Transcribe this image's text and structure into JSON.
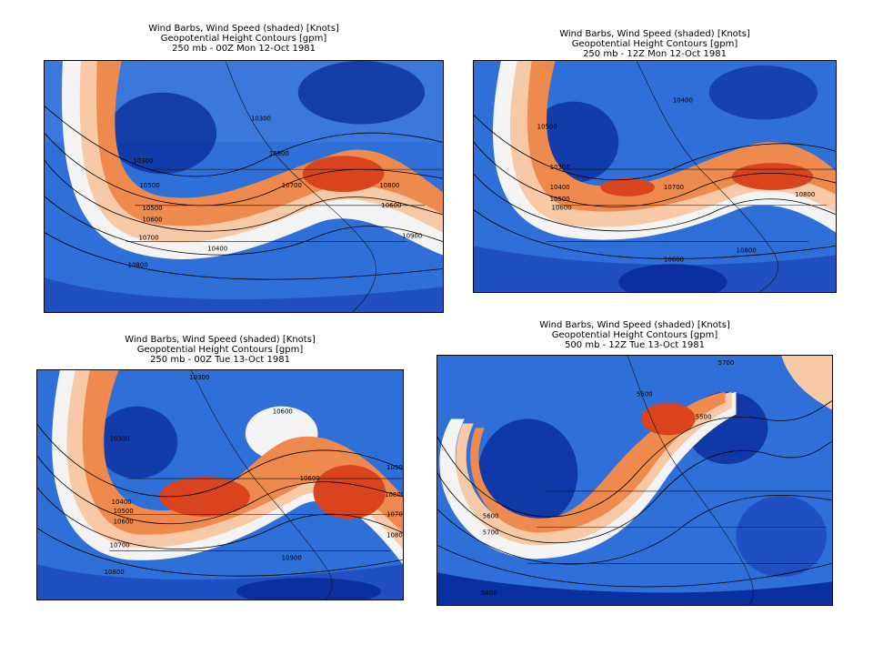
{
  "panels": [
    {
      "title_line1": "Wind Barbs, Wind Speed (shaded) [Knots]",
      "title_line2": "Geopotential Height Contours [gpm]",
      "title_line3": "250 mb - 00Z Mon 12-Oct 1981",
      "contour_labels": [
        "10500",
        "10300",
        "10500",
        "10600",
        "10700",
        "10800",
        "10700",
        "10800",
        "10600",
        "10800",
        "10900",
        "10300",
        "10400"
      ]
    },
    {
      "title_line1": "Wind Barbs, Wind Speed (shaded) [Knots]",
      "title_line2": "Geopotential Height Contours [gpm]",
      "title_line3": "250 mb - 12Z Mon 12-Oct 1981",
      "contour_labels": [
        "10500",
        "10300",
        "10400",
        "10500",
        "10600",
        "10700",
        "10800",
        "10600",
        "10800",
        "10400"
      ]
    },
    {
      "title_line1": "Wind Barbs, Wind Speed (shaded) [Knots]",
      "title_line2": "Geopotential Height Contours [gpm]",
      "title_line3": "250 mb - 00Z Tue 13-Oct 1981",
      "contour_labels": [
        "10300",
        "10600",
        "10300",
        "10400",
        "10500",
        "10600",
        "10700",
        "10800",
        "10600",
        "10900",
        "10800",
        "10700",
        "10800",
        "10300"
      ]
    },
    {
      "title_line1": "Wind Barbs, Wind Speed (shaded) [Knots]",
      "title_line2": "Geopotential Height Contours [gpm]",
      "title_line3": "500 mb - 12Z Tue 13-Oct 1981",
      "contour_labels": [
        "5700",
        "5500",
        "5600",
        "5700",
        "5800",
        "5500"
      ]
    }
  ],
  "colors": {
    "deep_blue": "#0b2f9e",
    "blue": "#2f6fd8",
    "light_blue": "#8fb8f0",
    "white": "#f4f4f4",
    "peach": "#f7c9a6",
    "orange": "#ef8a4f",
    "red": "#d9441f"
  }
}
